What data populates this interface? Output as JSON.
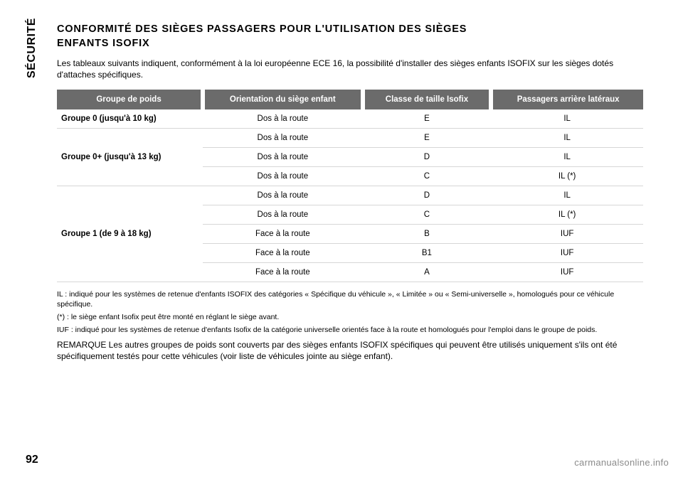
{
  "sidebar_label": "SÉCURITÉ",
  "title_line1": "CONFORMITÉ DES SIÈGES PASSAGERS POUR L'UTILISATION DES SIÈGES",
  "title_line2": "ENFANTS ISOFIX",
  "intro": "Les tableaux suivants indiquent, conformément à la loi européenne ECE 16, la possibilité d'installer des sièges enfants ISOFIX sur les sièges dotés d'attaches spécifiques.",
  "table": {
    "headers": [
      "Groupe de poids",
      "Orientation du siège enfant",
      "Classe de taille Isofix",
      "Passagers arrière latéraux"
    ],
    "groups": [
      {
        "label": "Groupe 0 (jusqu'à 10 kg)",
        "rows": [
          {
            "orientation": "Dos à la route",
            "class": "E",
            "suit": "IL"
          }
        ]
      },
      {
        "label": "Groupe 0+ (jusqu'à 13 kg)",
        "rows": [
          {
            "orientation": "Dos à la route",
            "class": "E",
            "suit": "IL"
          },
          {
            "orientation": "Dos à la route",
            "class": "D",
            "suit": "IL"
          },
          {
            "orientation": "Dos à la route",
            "class": "C",
            "suit": "IL (*)"
          }
        ]
      },
      {
        "label": "Groupe 1 (de 9 à 18 kg)",
        "rows": [
          {
            "orientation": "Dos à la route",
            "class": "D",
            "suit": "IL"
          },
          {
            "orientation": "Dos à la route",
            "class": "C",
            "suit": "IL (*)"
          },
          {
            "orientation": "Face à la route",
            "class": "B",
            "suit": "IUF"
          },
          {
            "orientation": "Face à la route",
            "class": "B1",
            "suit": "IUF"
          },
          {
            "orientation": "Face à la route",
            "class": "A",
            "suit": "IUF"
          }
        ]
      }
    ]
  },
  "notes": {
    "il": "IL : indiqué pour les systèmes de retenue d'enfants ISOFIX des catégories « Spécifique du véhicule », « Limitée » ou « Semi-universelle », homologués pour ce véhicule spécifique.",
    "star": "(*) : le siège enfant Isofix peut être monté en réglant le siège avant.",
    "iuf": "IUF : indiqué pour les systèmes de retenue d'enfants Isofix de la catégorie universelle orientés face à la route et homologués pour l'emploi dans le groupe de poids."
  },
  "remark": "REMARQUE Les autres groupes de poids sont couverts par des sièges enfants ISOFIX spécifiques qui peuvent être utilisés uniquement s'ils ont été spécifiquement testés pour cette véhicules (voir liste de véhicules jointe au siège enfant).",
  "page_number": "92",
  "source_link": "carmanualsonline.info",
  "colors": {
    "header_bg": "#6b6b6b",
    "header_text": "#ffffff",
    "row_border": "#d6d6d6",
    "source_text": "#8a8a8a"
  }
}
